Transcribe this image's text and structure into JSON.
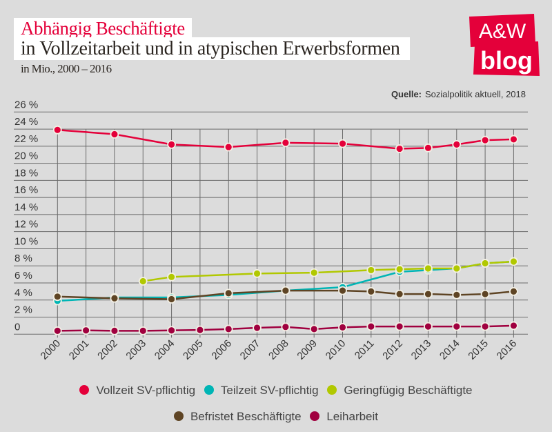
{
  "header": {
    "title_line1": "Abhängig Beschäftigte",
    "title_line2": "in Vollzeitarbeit und in atypischen Erwerbsformen",
    "subtitle": "in Mio., 2000 – 2016",
    "source_label": "Quelle:",
    "source_text": "Sozialpolitik aktuell, 2018",
    "logo_line1": "A&W",
    "logo_line2": "blog"
  },
  "colors": {
    "background": "#dcdcdc",
    "brand": "#e4003a",
    "grid": "#6a6a6a"
  },
  "chart_data": {
    "type": "line",
    "x": [
      2000,
      2001,
      2002,
      2003,
      2004,
      2005,
      2006,
      2007,
      2008,
      2009,
      2010,
      2011,
      2012,
      2013,
      2014,
      2015,
      2016
    ],
    "x_tick_labels": [
      "2000",
      "2001",
      "2002",
      "2003",
      "2004",
      "2005",
      "2006",
      "2007",
      "2008",
      "2009",
      "2010",
      "2011",
      "2012",
      "2013",
      "2014",
      "2015",
      "2016"
    ],
    "y_tick_labels": [
      "0",
      "2 %",
      "4 %",
      "6 %",
      "8 %",
      "10 %",
      "12 %",
      "14 %",
      "16 %",
      "18 %",
      "20 %",
      "22 %",
      "24 %",
      "26 %"
    ],
    "ylim": [
      0,
      26
    ],
    "grid": true,
    "legend_position": "bottom",
    "series": [
      {
        "name": "Vollzeit SV-pflichtig",
        "color": "#e4003a",
        "points": [
          [
            2000,
            23.9
          ],
          [
            2002,
            23.4
          ],
          [
            2004,
            22.2
          ],
          [
            2006,
            21.9
          ],
          [
            2008,
            22.4
          ],
          [
            2010,
            22.3
          ],
          [
            2012,
            21.7
          ],
          [
            2013,
            21.8
          ],
          [
            2014,
            22.2
          ],
          [
            2015,
            22.7
          ],
          [
            2016,
            22.8
          ]
        ]
      },
      {
        "name": "Teilzeit SV-pflichtig",
        "color": "#00b5b5",
        "points": [
          [
            2000,
            3.9
          ],
          [
            2002,
            4.3
          ],
          [
            2004,
            4.3
          ],
          [
            2006,
            4.6
          ],
          [
            2008,
            5.1
          ],
          [
            2010,
            5.5
          ],
          [
            2012,
            7.3
          ],
          [
            2013,
            7.5
          ],
          [
            2014,
            7.7
          ],
          [
            2015,
            8.3
          ],
          [
            2016,
            8.5
          ]
        ]
      },
      {
        "name": "Geringfügig Beschäftigte",
        "color": "#b1c800",
        "points": [
          [
            2003,
            6.2
          ],
          [
            2004,
            6.7
          ],
          [
            2007,
            7.1
          ],
          [
            2009,
            7.2
          ],
          [
            2011,
            7.5
          ],
          [
            2012,
            7.6
          ],
          [
            2013,
            7.7
          ],
          [
            2014,
            7.7
          ],
          [
            2015,
            8.3
          ],
          [
            2016,
            8.5
          ]
        ]
      },
      {
        "name": "Befristet Beschäftigte",
        "color": "#5e4424",
        "points": [
          [
            2000,
            4.4
          ],
          [
            2002,
            4.2
          ],
          [
            2004,
            4.1
          ],
          [
            2006,
            4.8
          ],
          [
            2008,
            5.1
          ],
          [
            2010,
            5.1
          ],
          [
            2011,
            5.0
          ],
          [
            2012,
            4.7
          ],
          [
            2013,
            4.7
          ],
          [
            2014,
            4.6
          ],
          [
            2015,
            4.7
          ],
          [
            2016,
            5.0
          ]
        ]
      },
      {
        "name": "Leiharbeit",
        "color": "#a0003f",
        "points": [
          [
            2000,
            0.4
          ],
          [
            2001,
            0.45
          ],
          [
            2002,
            0.4
          ],
          [
            2003,
            0.4
          ],
          [
            2004,
            0.45
          ],
          [
            2005,
            0.5
          ],
          [
            2006,
            0.6
          ],
          [
            2007,
            0.75
          ],
          [
            2008,
            0.85
          ],
          [
            2009,
            0.6
          ],
          [
            2010,
            0.8
          ],
          [
            2011,
            0.9
          ],
          [
            2012,
            0.9
          ],
          [
            2013,
            0.9
          ],
          [
            2014,
            0.9
          ],
          [
            2015,
            0.9
          ],
          [
            2016,
            1.0
          ]
        ]
      }
    ]
  }
}
